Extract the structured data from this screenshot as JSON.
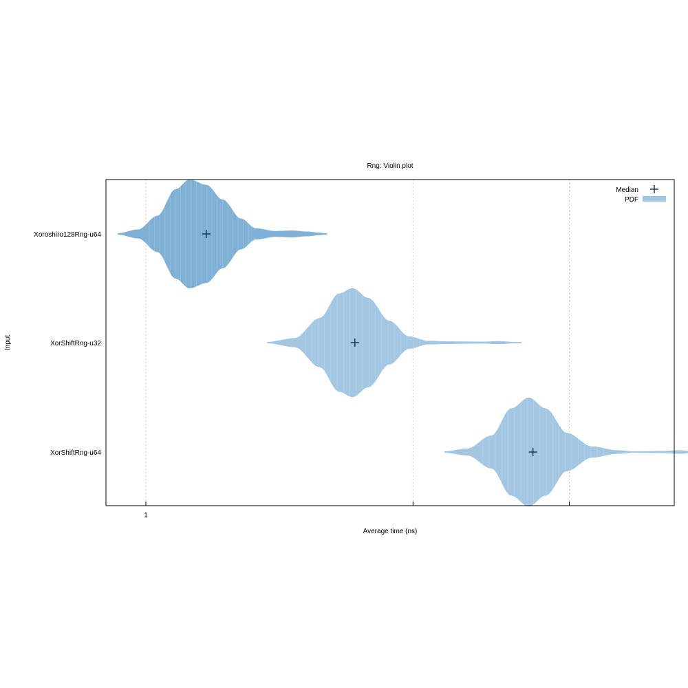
{
  "chart_data": {
    "type": "violin",
    "title": "Rng: Violin plot",
    "xlabel": "Average time (ns)",
    "ylabel": "Input",
    "x_scale": "log",
    "x_ticks": [
      {
        "value": 1,
        "label": "1"
      }
    ],
    "grid": {
      "x": true,
      "y": false
    },
    "legend": {
      "placement": "top-right",
      "median_label": "Median",
      "pdf_label": "PDF"
    },
    "colors": {
      "pdf_primary": "#7fb1d6",
      "pdf_secondary": "#a3c7e2",
      "median_marker": "#1a3550",
      "grid": "#c8c8c8",
      "frame": "#000000"
    },
    "series": [
      {
        "name": "Xoroshiro128Rng-u64",
        "median": 1.17,
        "color": "#7fb1d6",
        "pdf": [
          [
            0.93,
            0.01
          ],
          [
            0.98,
            0.08
          ],
          [
            1.03,
            0.33
          ],
          [
            1.08,
            0.82
          ],
          [
            1.12,
            1.0
          ],
          [
            1.17,
            0.9
          ],
          [
            1.22,
            0.63
          ],
          [
            1.28,
            0.28
          ],
          [
            1.33,
            0.1
          ],
          [
            1.4,
            0.05
          ],
          [
            1.46,
            0.06
          ],
          [
            1.52,
            0.04
          ],
          [
            1.57,
            0.02
          ],
          [
            1.6,
            0.0
          ]
        ]
      },
      {
        "name": "XorShiftRng-u32",
        "median": 1.72,
        "color": "#a3c7e2",
        "pdf": [
          [
            1.37,
            0.01
          ],
          [
            1.47,
            0.08
          ],
          [
            1.57,
            0.45
          ],
          [
            1.65,
            0.9
          ],
          [
            1.71,
            1.0
          ],
          [
            1.78,
            0.82
          ],
          [
            1.88,
            0.4
          ],
          [
            1.98,
            0.11
          ],
          [
            2.08,
            0.03
          ],
          [
            2.2,
            0.02
          ],
          [
            2.4,
            0.015
          ],
          [
            2.5,
            0.025
          ],
          [
            2.6,
            0.01
          ],
          [
            2.65,
            0.0
          ]
        ]
      },
      {
        "name": "XorShiftRng-u64",
        "median": 2.73,
        "color": "#a3c7e2",
        "pdf": [
          [
            2.17,
            0.01
          ],
          [
            2.3,
            0.06
          ],
          [
            2.45,
            0.3
          ],
          [
            2.58,
            0.8
          ],
          [
            2.7,
            1.0
          ],
          [
            2.82,
            0.8
          ],
          [
            2.98,
            0.35
          ],
          [
            3.18,
            0.1
          ],
          [
            3.4,
            0.03
          ],
          [
            3.55,
            0.01
          ],
          [
            3.8,
            0.015
          ],
          [
            4.0,
            0.03
          ],
          [
            4.1,
            0.015
          ],
          [
            4.2,
            0.0
          ]
        ]
      }
    ]
  }
}
